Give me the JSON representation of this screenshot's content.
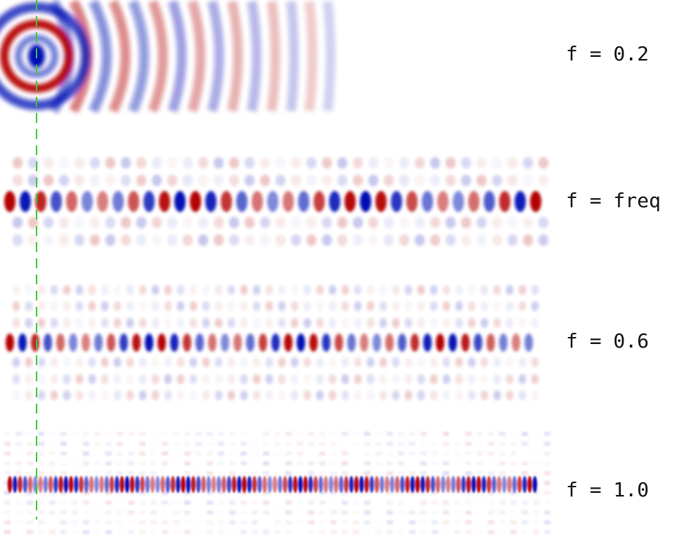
{
  "panels": [
    {
      "label": "f = 0.2",
      "pattern": "source-rings"
    },
    {
      "label": "f = freq",
      "pattern": "guided-mode"
    },
    {
      "label": "f = 0.6",
      "pattern": "guided-mode-with-radiation"
    },
    {
      "label": "f = 1.0",
      "pattern": "fine-guided-mode"
    }
  ],
  "colors": {
    "positive": "#b40000",
    "negative": "#0010b4",
    "marker_line": "#33cc33"
  },
  "marker_line_style": "dashed-vertical"
}
